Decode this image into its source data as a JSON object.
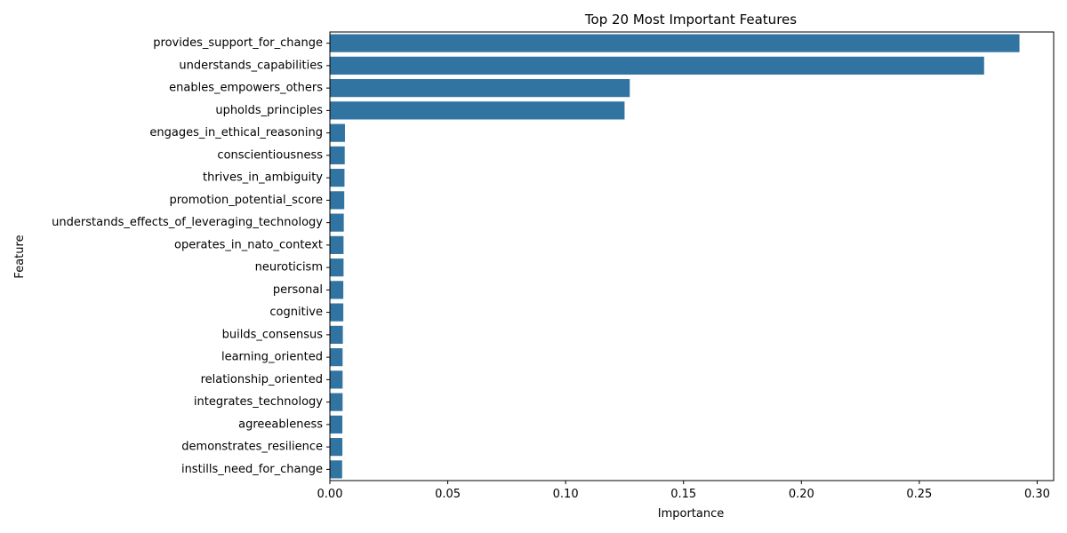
{
  "chart_data": {
    "type": "bar",
    "orientation": "horizontal",
    "title": "Top 20 Most Important Features",
    "xlabel": "Importance",
    "ylabel": "Feature",
    "xlim": [
      0,
      0.307
    ],
    "xticks": [
      0.0,
      0.05,
      0.1,
      0.15,
      0.2,
      0.25,
      0.3
    ],
    "xtick_labels": [
      "0.00",
      "0.05",
      "0.10",
      "0.15",
      "0.20",
      "0.25",
      "0.30"
    ],
    "grid": false,
    "bar_color": "#3274a1",
    "categories": [
      "provides_support_for_change",
      "understands_capabilities",
      "enables_empowers_others",
      "upholds_principles",
      "engages_in_ethical_reasoning",
      "conscientiousness",
      "thrives_in_ambiguity",
      "promotion_potential_score",
      "understands_effects_of_leveraging_technology",
      "operates_in_nato_context",
      "neuroticism",
      "personal",
      "cognitive",
      "builds_consensus",
      "learning_oriented",
      "relationship_oriented",
      "integrates_technology",
      "agreeableness",
      "demonstrates_resilience",
      "instills_need_for_change"
    ],
    "values": [
      0.2925,
      0.2775,
      0.1272,
      0.125,
      0.0064,
      0.0063,
      0.0062,
      0.0061,
      0.0059,
      0.0058,
      0.0058,
      0.0057,
      0.0057,
      0.0055,
      0.0054,
      0.0054,
      0.0054,
      0.0053,
      0.0053,
      0.0052
    ]
  }
}
